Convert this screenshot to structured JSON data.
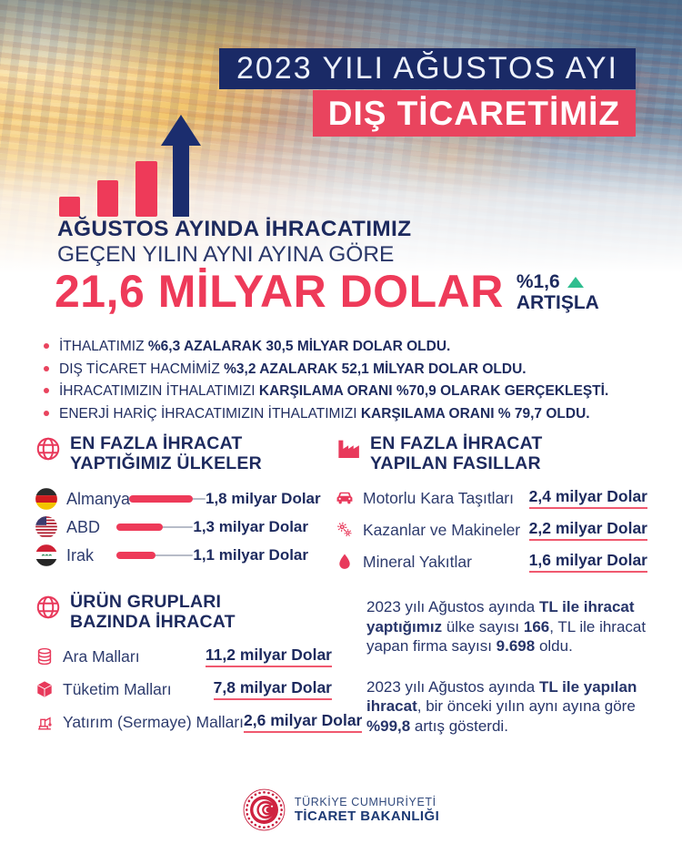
{
  "header": {
    "banner_line1": "2023 YILI AĞUSTOS AYI",
    "banner_line2": "DIŞ TİCARETİMİZ"
  },
  "headline": {
    "line1": "AĞUSTOS AYINDA İHRACATIMIZ",
    "line2": "GEÇEN YILIN AYNI AYINA GÖRE",
    "amount": "21,6 MİLYAR DOLAR",
    "change_pct": "%1,6",
    "change_label": "ARTIŞLA"
  },
  "colors": {
    "navy": "#1d2a5e",
    "banner_navy": "#1a2a66",
    "accent_red": "#ee3a59",
    "banner_red": "#e9445e",
    "growth_green": "#2fbe8f"
  },
  "bullets": [
    {
      "segs": [
        {
          "t": "İTHALATIMIZ ",
          "b": 0
        },
        {
          "t": "%6,3 AZALARAK 30,5 MİLYAR DOLAR OLDU.",
          "b": 1
        }
      ]
    },
    {
      "segs": [
        {
          "t": "DIŞ TİCARET HACMİMİZ ",
          "b": 0
        },
        {
          "t": "%3,2 AZALARAK 52,1 MİLYAR DOLAR OLDU.",
          "b": 1
        }
      ]
    },
    {
      "segs": [
        {
          "t": "İHRACATIMIZIN İTHALATIMIZI ",
          "b": 0
        },
        {
          "t": "KARŞILAMA ORANI %70,9 OLARAK GERÇEKLEŞTİ.",
          "b": 1
        }
      ]
    },
    {
      "segs": [
        {
          "t": "ENERJİ HARİÇ İHRACATIMIZIN İTHALATIMIZI ",
          "b": 0
        },
        {
          "t": "KARŞILAMA ORANI % 79,7 OLDU.",
          "b": 1
        }
      ]
    }
  ],
  "countries": {
    "title_line1": "EN FAZLA İHRACAT",
    "title_line2": "YAPTIĞIMIZ ÜLKELER",
    "icon": "globe-icon",
    "items": [
      {
        "country": "Almanya",
        "flag": "germany-flag",
        "value": "1,8 milyar Dolar",
        "bar_pct": 83
      },
      {
        "country": "ABD",
        "flag": "usa-flag",
        "value": "1,3 milyar Dolar",
        "bar_pct": 60
      },
      {
        "country": "Irak",
        "flag": "iraq-flag",
        "value": "1,1 milyar Dolar",
        "bar_pct": 51
      }
    ]
  },
  "chapters": {
    "title_line1": "EN FAZLA İHRACAT",
    "title_line2": "YAPILAN FASILLAR",
    "icon": "factory-icon",
    "items": [
      {
        "label": "Motorlu Kara Taşıtları",
        "icon": "car-icon",
        "value": "2,4 milyar Dolar"
      },
      {
        "label": "Kazanlar ve Makineler",
        "icon": "gears-icon",
        "value": "2,2 milyar Dolar"
      },
      {
        "label": "Mineral Yakıtlar",
        "icon": "droplet-icon",
        "value": "1,6 milyar Dolar"
      }
    ]
  },
  "product_groups": {
    "title_line1": "ÜRÜN GRUPLARI",
    "title_line2": "BAZINDA İHRACAT",
    "icon": "globe-icon",
    "items": [
      {
        "label": "Ara Malları",
        "icon": "database-icon",
        "value": "11,2 milyar Dolar"
      },
      {
        "label": "Tüketim Malları",
        "icon": "box-icon",
        "value": "7,8 milyar Dolar"
      },
      {
        "label": "Yatırım (Sermaye) Malları",
        "icon": "crane-icon",
        "value": "2,6 milyar Dolar"
      }
    ]
  },
  "tl_paragraphs": [
    {
      "segs": [
        {
          "t": "2023 yılı Ağustos ayında ",
          "b": 0
        },
        {
          "t": "TL ile ihracat yaptığımız",
          "b": 1
        },
        {
          "t": " ülke sayısı ",
          "b": 0
        },
        {
          "t": "166",
          "b": 1
        },
        {
          "t": ", TL ile ihracat yapan firma sayısı ",
          "b": 0
        },
        {
          "t": "9.698",
          "b": 1
        },
        {
          "t": " oldu.",
          "b": 0
        }
      ]
    },
    {
      "segs": [
        {
          "t": "2023 yılı Ağustos ayında ",
          "b": 0
        },
        {
          "t": "TL ile yapılan ihracat",
          "b": 1
        },
        {
          "t": ", bir önceki yılın aynı ayına göre ",
          "b": 0
        },
        {
          "t": "%99,8",
          "b": 1
        },
        {
          "t": " artış gösterdi.",
          "b": 0
        }
      ]
    }
  ],
  "footer": {
    "org_line1": "TÜRKİYE CUMHURİYETİ",
    "org_line2": "TİCARET BAKANLIĞI"
  }
}
